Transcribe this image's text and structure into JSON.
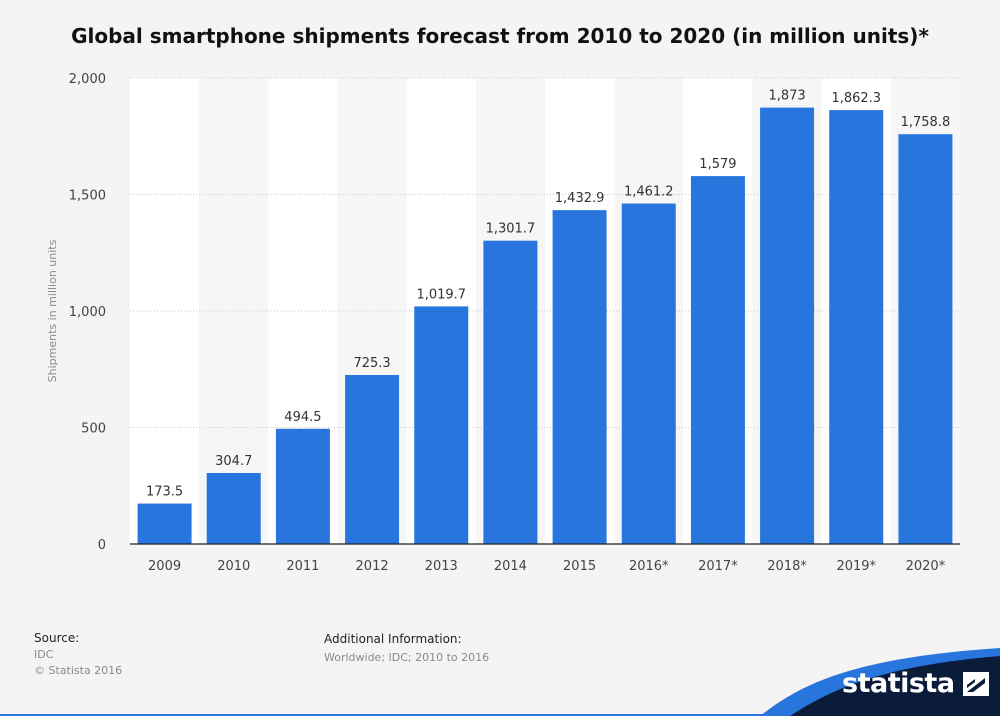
{
  "chart_data": {
    "type": "bar",
    "title": "Global smartphone shipments forecast from 2010 to 2020 (in million units)*",
    "categories": [
      "2009",
      "2010",
      "2011",
      "2012",
      "2013",
      "2014",
      "2015",
      "2016*",
      "2017*",
      "2018*",
      "2019*",
      "2020*"
    ],
    "values": [
      173.5,
      304.7,
      494.5,
      725.3,
      1019.7,
      1301.7,
      1432.9,
      1461.2,
      1579,
      1873,
      1862.3,
      1758.8
    ],
    "value_labels": [
      "173.5",
      "304.7",
      "494.5",
      "725.3",
      "1,019.7",
      "1,301.7",
      "1,432.9",
      "1,461.2",
      "1,579",
      "1,873",
      "1,862.3",
      "1,758.8"
    ],
    "ylabel": "Shipments in million units",
    "xlabel": "",
    "ylim": [
      0,
      2000
    ],
    "yticks": [
      0,
      500,
      1000,
      1500,
      2000
    ],
    "ytick_labels": [
      "0",
      "500",
      "1,000",
      "1,500",
      "2,000"
    ],
    "grid": true,
    "bar_color": "#2876dd"
  },
  "footer": {
    "source_label": "Source:",
    "source_value": "IDC",
    "copyright": "© Statista 2016",
    "additional_label": "Additional Information:",
    "additional_value": "Worldwide; IDC; 2010 to 2016"
  },
  "brand": {
    "name": "statista",
    "logo_icon": "statista-logo-icon",
    "accent": "#2876dd",
    "dark": "#0b1b3a"
  }
}
